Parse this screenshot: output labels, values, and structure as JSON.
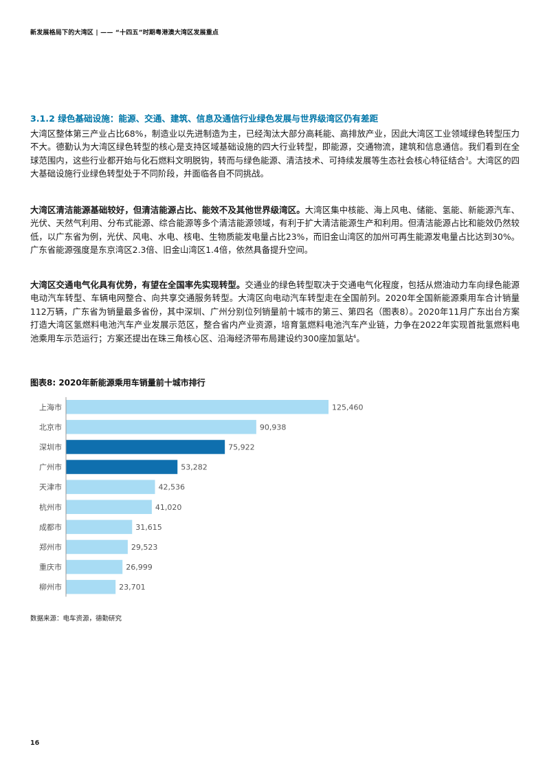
{
  "header": {
    "running_head": "新发展格局下的大湾区 | —— “十四五”时期粤港澳大湾区发展重点"
  },
  "section": {
    "title": "3.1.2 绿色基础设施：能源、交通、建筑、信息及通信行业绿色发展与世界级湾区仍有差距",
    "para1_a": "大湾区整体第三产业占比68%，制造业以先进制造为主，已经淘汰大部分高耗能、高排放产业，因此大湾区工业领域绿色转型压力不大。德勤认为大湾区绿色转型的核心是支持区域基础设施的四大行业转型，即能源，交通物流，建筑和信息通信。我们看到在全球范围内，这些行业都开始与化石燃料文明脱钩，转而与绿色能源、清洁技术、可持续发展等生态社会核心特征结合",
    "para1_sup": "3",
    "para1_b": "。大湾区的四大基础设施行业绿色转型处于不同阶段，并面临各自不同挑战。",
    "para2_bold": "大湾区清洁能源基础较好，但清洁能源占比、能效不及其他世界级湾区。",
    "para2_text": "大湾区集中核能、海上风电、储能、氢能、新能源汽车、光伏、天然气利用、分布式能源、综合能源等多个清洁能源领域，有利于扩大清洁能源生产和利用。但清洁能源占比和能效仍然较低，以广东省为例，光伏、风电、水电、核电、生物质能发电量占比23%，而旧金山湾区的加州可再生能源发电量占比达到30%。广东省能源强度是东京湾区2.3倍、旧金山湾区1.4倍，依然具备提升空间。",
    "para3_bold": "大湾区交通电气化具有优势，有望在全国率先实现转型。",
    "para3_text": "交通业的绿色转型取决于交通电气化程度，包括从燃油动力车向绿色能源电动汽车转型、车辆电网整合、向共享交通服务转型。大湾区向电动汽车转型走在全国前列。2020年全国新能源乘用车合计销量112万辆，广东省为销量最多省份，其中深圳、广州分别位列销量前十城市的第三、第四名（图表8）。2020年11月广东出台方案打造大湾区氢燃料电池汽车产业发展示范区，整合省内产业资源，培育氢燃料电池汽车产业链，力争在2022年实现首批氢燃料电池乘用车示范运行；方案还提出在珠三角核心区、沿海经济带布局建设约300座加氢站",
    "para3_sup": "4",
    "para3_end": "。"
  },
  "figure": {
    "title": "图表8: 2020年新能源乘用车销量前十城市排行",
    "source": "数据来源：电车资源，德勤研究"
  },
  "chart_data": {
    "type": "bar",
    "orientation": "horizontal",
    "categories": [
      "上海市",
      "北京市",
      "深圳市",
      "广州市",
      "天津市",
      "杭州市",
      "成都市",
      "郑州市",
      "重庆市",
      "柳州市"
    ],
    "values": [
      125460,
      90938,
      75922,
      53282,
      42536,
      41020,
      31615,
      29523,
      26999,
      23701
    ],
    "value_labels": [
      "125,460",
      "90,938",
      "75,922",
      "53,282",
      "42,536",
      "41,020",
      "31,615",
      "29,523",
      "26,999",
      "23,701"
    ],
    "highlight": [
      "深圳市",
      "广州市"
    ],
    "colors": {
      "default": "#a8dcf4",
      "highlight": "#0f6fae",
      "label": "#555555",
      "axis": "#999999"
    },
    "xlim": [
      0,
      125460
    ],
    "title": "2020年新能源乘用车销量前十城市排行",
    "xlabel": "",
    "ylabel": ""
  },
  "footer": {
    "page_number": "16"
  }
}
